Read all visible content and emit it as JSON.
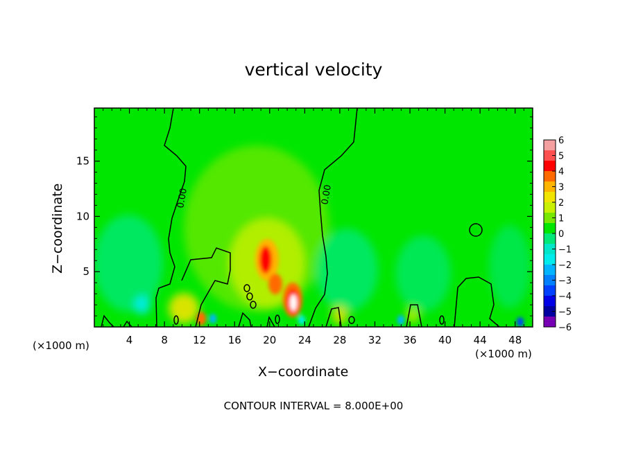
{
  "chart_data": {
    "type": "heatmap",
    "title": "vertical velocity",
    "xlabel": "X−coordinate",
    "ylabel": "Z−coordinate",
    "x_units_label": "(×1000 m)",
    "x_ticks": [
      "4",
      "8",
      "12",
      "16",
      "20",
      "24",
      "28",
      "32",
      "36",
      "40",
      "44",
      "48"
    ],
    "x_tick_values": [
      4,
      8,
      12,
      16,
      20,
      24,
      28,
      32,
      36,
      40,
      44,
      48
    ],
    "y_ticks": [
      "5",
      "10",
      "15"
    ],
    "y_tick_values": [
      5,
      10,
      15
    ],
    "xlim": [
      0,
      50
    ],
    "ylim": [
      0,
      19.8
    ],
    "colorbar": {
      "ticks": [
        "6",
        "5",
        "4",
        "3",
        "2",
        "1",
        "0",
        "−1",
        "−2",
        "−3",
        "−4",
        "−5",
        "−6"
      ],
      "range": [
        -6,
        6
      ],
      "colors_top_to_bottom": [
        "#f5a0a0",
        "#ff5050",
        "#ff0000",
        "#ff6a00",
        "#ffb400",
        "#f0e400",
        "#c8f000",
        "#78e800",
        "#00e600",
        "#00e878",
        "#00e6c8",
        "#00ecec",
        "#00b4ff",
        "#0080ff",
        "#0040ff",
        "#0000e6",
        "#0000a0",
        "#7800b4"
      ]
    },
    "contour_label": "0.00",
    "contour_interval_text": "CONTOUR INTERVAL = 8.000E+00",
    "features": [
      {
        "x": 22.5,
        "z": 2.5,
        "value": 6
      },
      {
        "x": 19.5,
        "z": 6.0,
        "value": 4.5
      },
      {
        "x": 20.5,
        "z": 4.0,
        "value": 4
      },
      {
        "x": 10.5,
        "z": 2.0,
        "value": 2
      },
      {
        "x": 4.5,
        "z": 2.0,
        "value": -2
      },
      {
        "x": 25.5,
        "z": 4.0,
        "value": -1.5
      },
      {
        "x": 48.5,
        "z": 0.5,
        "value": -3.5
      },
      {
        "x": 35.5,
        "z": 0.5,
        "value": -2.5
      },
      {
        "x": 13.5,
        "z": 0.8,
        "value": -2
      }
    ]
  }
}
